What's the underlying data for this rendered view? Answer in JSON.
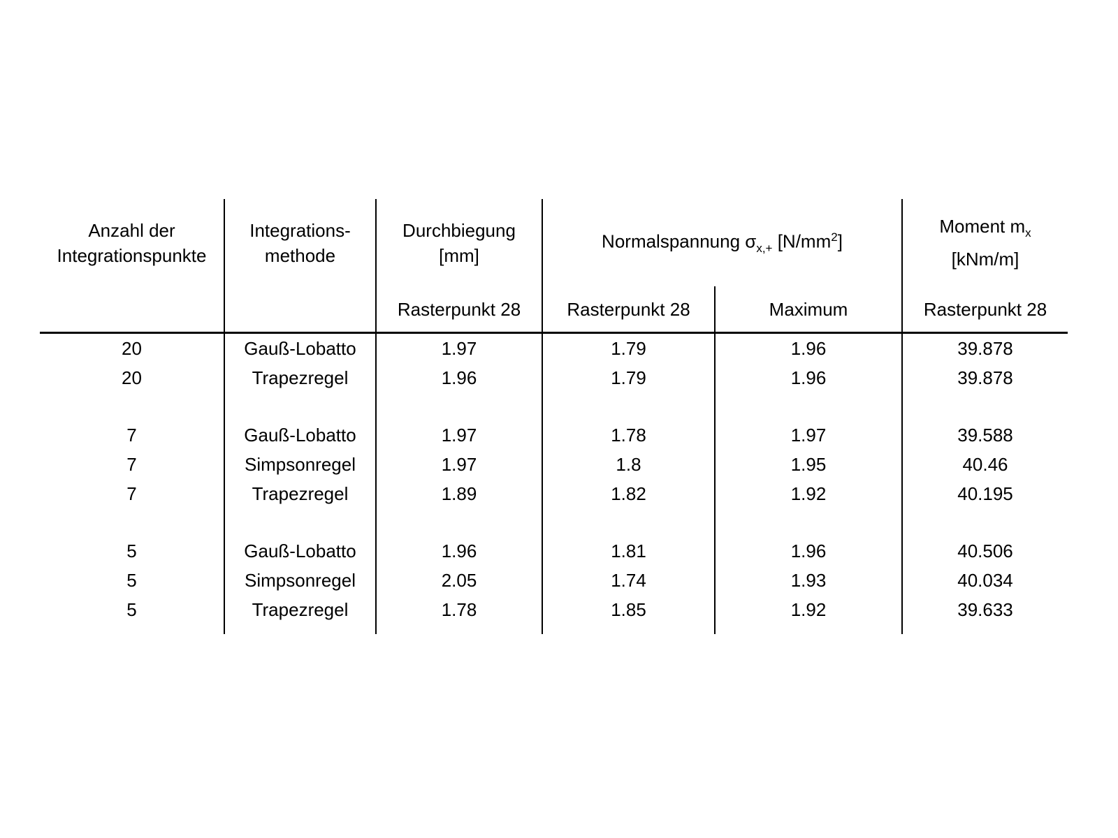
{
  "table": {
    "header": {
      "col_points": {
        "line1": "Anzahl der",
        "line2": "Integrationspunkte"
      },
      "col_method": {
        "line1": "Integrations-",
        "line2": "methode"
      },
      "col_deflection": {
        "line1": "Durchbiegung",
        "line2": "[mm]",
        "subheader": "Rasterpunkt 28"
      },
      "col_stress": {
        "prefix": "Normalspannung σ",
        "subscript": "x,+",
        "mid": " [N/mm",
        "superscript": "2",
        "suffix": "]",
        "subheader_left": "Rasterpunkt 28",
        "subheader_right": "Maximum"
      },
      "col_moment": {
        "prefix": "Moment m",
        "subscript": "x",
        "line2": "[kNm/m]",
        "subheader": "Rasterpunkt 28"
      }
    },
    "rows": [
      {
        "points": "20",
        "method": "Gauß-Lobatto",
        "deflection": "1.97",
        "sigma_rp28": "1.79",
        "sigma_max": "1.96",
        "moment": "39.878"
      },
      {
        "points": "20",
        "method": "Trapezregel",
        "deflection": "1.96",
        "sigma_rp28": "1.79",
        "sigma_max": "1.96",
        "moment": "39.878"
      },
      {
        "points": "7",
        "method": "Gauß-Lobatto",
        "deflection": "1.97",
        "sigma_rp28": "1.78",
        "sigma_max": "1.97",
        "moment": "39.588"
      },
      {
        "points": "7",
        "method": "Simpsonregel",
        "deflection": "1.97",
        "sigma_rp28": "1.8",
        "sigma_max": "1.95",
        "moment": "40.46"
      },
      {
        "points": "7",
        "method": "Trapezregel",
        "deflection": "1.89",
        "sigma_rp28": "1.82",
        "sigma_max": "1.92",
        "moment": "40.195"
      },
      {
        "points": "5",
        "method": "Gauß-Lobatto",
        "deflection": "1.96",
        "sigma_rp28": "1.81",
        "sigma_max": "1.96",
        "moment": "40.506"
      },
      {
        "points": "5",
        "method": "Simpsonregel",
        "deflection": "2.05",
        "sigma_rp28": "1.74",
        "sigma_max": "1.93",
        "moment": "40.034"
      },
      {
        "points": "5",
        "method": "Trapezregel",
        "deflection": "1.78",
        "sigma_rp28": "1.85",
        "sigma_max": "1.92",
        "moment": "39.633"
      }
    ],
    "colors": {
      "text": "#000000",
      "background": "#ffffff",
      "rule": "#000000"
    }
  }
}
